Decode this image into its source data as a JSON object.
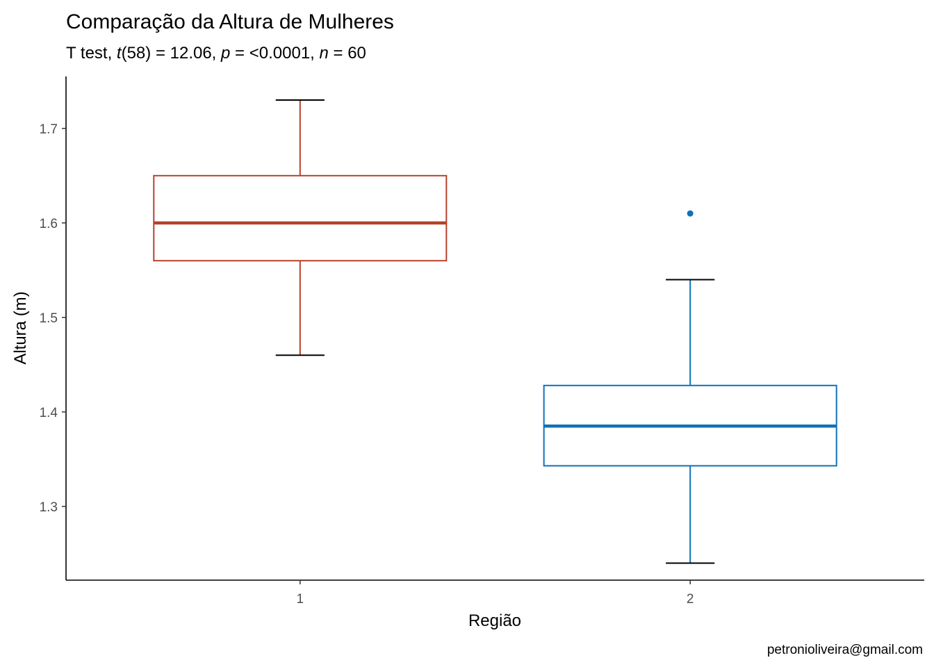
{
  "chart_data": {
    "type": "box",
    "title": "Comparação da Altura de Mulheres",
    "subtitle": {
      "prefix": "T test, ",
      "t_sym": "t",
      "t_args": "(58) = 12.06, ",
      "p_sym": "p",
      "p_text": " = <0.0001, ",
      "n_sym": "n",
      "n_text": " = 60"
    },
    "xlabel": "Região",
    "ylabel": "Altura (m)",
    "caption": "petronioliveira@gmail.com",
    "ylim": [
      1.222,
      1.755
    ],
    "yticks": [
      1.3,
      1.4,
      1.5,
      1.6,
      1.7
    ],
    "ytick_labels": [
      "1.3",
      "1.4",
      "1.5",
      "1.6",
      "1.7"
    ],
    "grid": false,
    "legend": "none",
    "categories": [
      "1",
      "2"
    ],
    "boxes": [
      {
        "category": "1",
        "color": "#b7402b",
        "whisker_low": 1.46,
        "q1": 1.56,
        "median": 1.6,
        "q3": 1.65,
        "whisker_high": 1.73,
        "outliers": []
      },
      {
        "category": "2",
        "color": "#0f72b8",
        "whisker_low": 1.24,
        "q1": 1.343,
        "median": 1.385,
        "q3": 1.428,
        "whisker_high": 1.54,
        "outliers": [
          1.61
        ]
      }
    ]
  }
}
